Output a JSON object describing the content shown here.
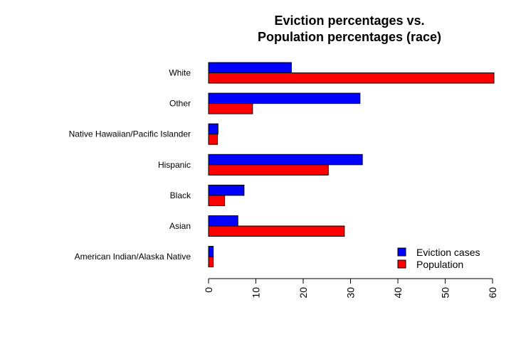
{
  "chart_data": {
    "type": "bar",
    "orientation": "horizontal",
    "title_lines": [
      "Eviction percentages vs.",
      "Population percentages (race)"
    ],
    "categories": [
      "White",
      "Other",
      "Native Hawaiian/Pacific Islander",
      "Hispanic",
      "Black",
      "Asian",
      "American Indian/Alaska Native"
    ],
    "series": [
      {
        "name": "Eviction cases",
        "color": "#0000ff",
        "values": [
          17.5,
          32.0,
          2.0,
          32.5,
          7.5,
          6.2,
          1.0
        ]
      },
      {
        "name": "Population",
        "color": "#ff0000",
        "values": [
          60.3,
          9.3,
          1.9,
          25.3,
          3.4,
          28.7,
          1.0
        ]
      }
    ],
    "xlim": [
      0,
      60
    ],
    "xticks": [
      0,
      10,
      20,
      30,
      40,
      50,
      60
    ],
    "xlabel": "",
    "ylabel": "",
    "grid": false,
    "legend_position": "bottom-right"
  }
}
